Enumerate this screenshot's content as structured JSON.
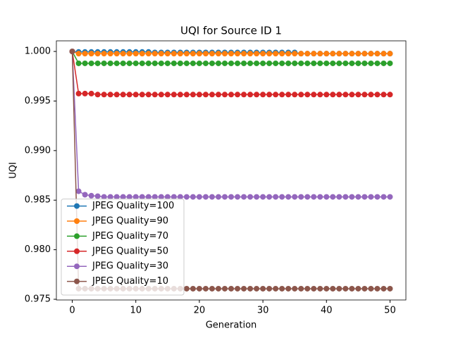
{
  "chart_data": {
    "type": "line",
    "title": "UQI for Source ID 1",
    "xlabel": "Generation",
    "ylabel": "UQI",
    "x": [
      0,
      1,
      2,
      3,
      4,
      5,
      6,
      7,
      8,
      9,
      10,
      11,
      12,
      13,
      14,
      15,
      16,
      17,
      18,
      19,
      20,
      21,
      22,
      23,
      24,
      25,
      26,
      27,
      28,
      29,
      30,
      31,
      32,
      33,
      34,
      35,
      36,
      37,
      38,
      39,
      40,
      41,
      42,
      43,
      44,
      45,
      46,
      47,
      48,
      49,
      50
    ],
    "xlim": [
      -2.5,
      52.5
    ],
    "xticks": [
      0,
      10,
      20,
      30,
      40,
      50
    ],
    "ylim": [
      0.97493,
      1.00107
    ],
    "yticks": [
      {
        "value": 0.975,
        "label": "0.975"
      },
      {
        "value": 0.98,
        "label": "0.980"
      },
      {
        "value": 0.985,
        "label": "0.985"
      },
      {
        "value": 0.99,
        "label": "0.990"
      },
      {
        "value": 0.995,
        "label": "0.995"
      },
      {
        "value": 1,
        "label": "1.000"
      }
    ],
    "legend": "lower left",
    "series": [
      {
        "name": "JPEG Quality=100",
        "color": "#1f77b4",
        "values": [
          1,
          0.99995,
          0.99995,
          0.99995,
          0.99995,
          0.99995,
          0.99995,
          0.99995,
          0.99995,
          0.99995,
          0.99995,
          0.99995,
          0.99995,
          0.9999,
          0.9999,
          0.9999,
          0.9999,
          0.9999,
          0.9999,
          0.9999,
          0.9999,
          0.9999,
          0.9999,
          0.9999,
          0.9999,
          0.9999,
          0.9999,
          0.9999,
          0.9999,
          0.9999,
          0.9999,
          0.9999,
          0.9999,
          0.9999,
          0.9999,
          0.9999,
          0.99978,
          0.99978,
          0.99978,
          0.99978,
          0.99978,
          0.99978,
          0.99978,
          0.99978,
          0.99978,
          0.99978,
          0.99978,
          0.99978,
          0.99978,
          0.99978,
          0.99978
        ]
      },
      {
        "name": "JPEG Quality=90",
        "color": "#ff7f0e",
        "values": [
          1,
          0.99978,
          0.99978,
          0.99978,
          0.99978,
          0.99978,
          0.99978,
          0.99978,
          0.99978,
          0.99978,
          0.99978,
          0.99978,
          0.99978,
          0.99978,
          0.99978,
          0.99978,
          0.99978,
          0.99978,
          0.99978,
          0.99978,
          0.99978,
          0.99978,
          0.99978,
          0.99978,
          0.99978,
          0.99978,
          0.99978,
          0.99978,
          0.99978,
          0.99978,
          0.99978,
          0.99978,
          0.99978,
          0.99978,
          0.99978,
          0.99978,
          0.99978,
          0.99978,
          0.99978,
          0.99978,
          0.99978,
          0.99978,
          0.99978,
          0.99978,
          0.99978,
          0.99978,
          0.99978,
          0.99978,
          0.99978,
          0.99978,
          0.99978
        ]
      },
      {
        "name": "JPEG Quality=70",
        "color": "#2ca02c",
        "values": [
          1,
          0.9988,
          0.9988,
          0.9988,
          0.9988,
          0.9988,
          0.9988,
          0.9988,
          0.9988,
          0.9988,
          0.9988,
          0.9988,
          0.9988,
          0.9988,
          0.9988,
          0.9988,
          0.9988,
          0.9988,
          0.9988,
          0.9988,
          0.9988,
          0.9988,
          0.9988,
          0.9988,
          0.9988,
          0.9988,
          0.9988,
          0.9988,
          0.9988,
          0.9988,
          0.9988,
          0.9988,
          0.9988,
          0.9988,
          0.9988,
          0.9988,
          0.9988,
          0.9988,
          0.9988,
          0.9988,
          0.9988,
          0.9988,
          0.9988,
          0.9988,
          0.9988,
          0.9988,
          0.9988,
          0.9988,
          0.9988,
          0.9988,
          0.9988
        ]
      },
      {
        "name": "JPEG Quality=50",
        "color": "#d62728",
        "values": [
          1,
          0.99575,
          0.99575,
          0.99575,
          0.99565,
          0.99565,
          0.99565,
          0.99565,
          0.99565,
          0.99565,
          0.99565,
          0.99565,
          0.99565,
          0.99565,
          0.99565,
          0.99565,
          0.99565,
          0.99565,
          0.99565,
          0.99565,
          0.99565,
          0.99565,
          0.99565,
          0.99565,
          0.99565,
          0.99565,
          0.99565,
          0.99565,
          0.99565,
          0.99565,
          0.99565,
          0.99565,
          0.99565,
          0.99565,
          0.99565,
          0.99565,
          0.99565,
          0.99565,
          0.99565,
          0.99565,
          0.99565,
          0.99565,
          0.99565,
          0.99565,
          0.99565,
          0.99565,
          0.99565,
          0.99565,
          0.99565,
          0.99565,
          0.99565
        ]
      },
      {
        "name": "JPEG Quality=30",
        "color": "#9467bd",
        "values": [
          1,
          0.9859,
          0.98555,
          0.98545,
          0.9854,
          0.98533,
          0.98533,
          0.98533,
          0.98533,
          0.98533,
          0.98533,
          0.98533,
          0.98533,
          0.98533,
          0.98533,
          0.98533,
          0.98533,
          0.98533,
          0.98533,
          0.98533,
          0.98533,
          0.98533,
          0.98533,
          0.98533,
          0.98533,
          0.98533,
          0.98533,
          0.98533,
          0.98533,
          0.98533,
          0.98533,
          0.98533,
          0.98533,
          0.98533,
          0.98533,
          0.98533,
          0.98533,
          0.98533,
          0.98533,
          0.98533,
          0.98533,
          0.98533,
          0.98533,
          0.98533,
          0.98533,
          0.98533,
          0.98533,
          0.98533,
          0.98533,
          0.98533,
          0.98533
        ]
      },
      {
        "name": "JPEG Quality=10",
        "color": "#8c564b",
        "values": [
          1,
          0.97607,
          0.97607,
          0.97607,
          0.97607,
          0.97607,
          0.97607,
          0.97607,
          0.97607,
          0.97607,
          0.97607,
          0.97607,
          0.97607,
          0.97607,
          0.97607,
          0.97607,
          0.97607,
          0.97607,
          0.97607,
          0.97607,
          0.97607,
          0.97607,
          0.97607,
          0.97607,
          0.97607,
          0.97607,
          0.97607,
          0.97607,
          0.97607,
          0.97607,
          0.97607,
          0.97607,
          0.97607,
          0.97607,
          0.97607,
          0.97607,
          0.97607,
          0.97607,
          0.97607,
          0.97607,
          0.97607,
          0.97607,
          0.97607,
          0.97607,
          0.97607,
          0.97607,
          0.97607,
          0.97607,
          0.97607,
          0.97607,
          0.97607
        ]
      }
    ]
  }
}
